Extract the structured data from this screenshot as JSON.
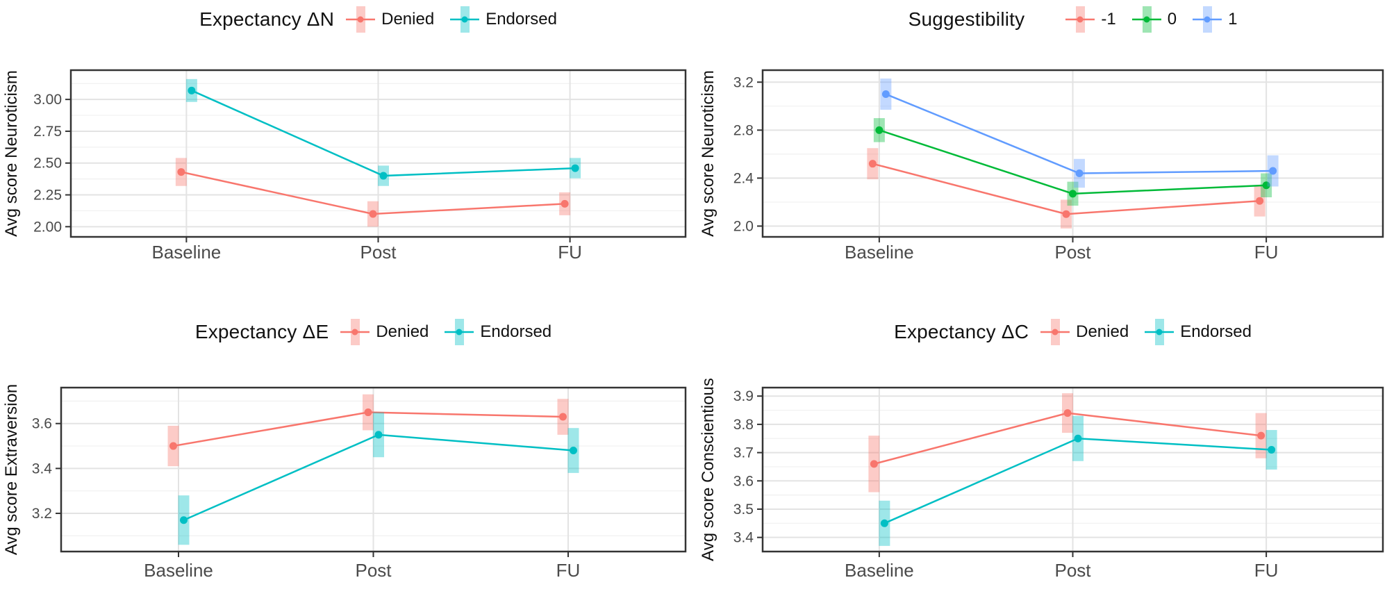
{
  "figure": {
    "background": "#ffffff",
    "x_axis_categories": [
      "Baseline",
      "Post",
      "FU"
    ]
  },
  "chart_data": [
    {
      "type": "line",
      "title": "Expectancy ΔN",
      "xlabel": "",
      "ylabel": "Avg score Neuroticism",
      "categories": [
        "Baseline",
        "Post",
        "FU"
      ],
      "yticks": [
        2.0,
        2.25,
        2.5,
        2.75,
        3.0
      ],
      "ytick_decimals": 2,
      "ylim": [
        1.92,
        3.23
      ],
      "grid": "major+minor",
      "legend_position": "top",
      "legend_title_gap": 16,
      "series": [
        {
          "name": "Denied",
          "color": "#F8766D",
          "values": [
            2.43,
            2.1,
            2.18
          ],
          "err": [
            0.11,
            0.1,
            0.09
          ]
        },
        {
          "name": "Endorsed",
          "color": "#00BFC4",
          "values": [
            3.07,
            2.4,
            2.46
          ],
          "err": [
            0.09,
            0.08,
            0.08
          ]
        }
      ]
    },
    {
      "type": "line",
      "title": "Suggestibility",
      "xlabel": "",
      "ylabel": "Avg score Neuroticism",
      "categories": [
        "Baseline",
        "Post",
        "FU"
      ],
      "yticks": [
        2.0,
        2.4,
        2.8,
        3.2
      ],
      "ytick_decimals": 1,
      "ylim": [
        1.91,
        3.3
      ],
      "grid": "major+minor",
      "legend_position": "top",
      "legend_title_gap": 58,
      "series": [
        {
          "name": "-1",
          "color": "#F8766D",
          "values": [
            2.52,
            2.1,
            2.21
          ],
          "err": [
            0.13,
            0.12,
            0.13
          ]
        },
        {
          "name": "0",
          "color": "#00BA38",
          "values": [
            2.8,
            2.27,
            2.34
          ],
          "err": [
            0.1,
            0.1,
            0.1
          ]
        },
        {
          "name": "1",
          "color": "#619CFF",
          "values": [
            3.1,
            2.44,
            2.46
          ],
          "err": [
            0.13,
            0.12,
            0.13
          ]
        }
      ]
    },
    {
      "type": "line",
      "title": "Expectancy ΔE",
      "xlabel": "",
      "ylabel": "Avg score Extraversion",
      "categories": [
        "Baseline",
        "Post",
        "FU"
      ],
      "yticks": [
        3.2,
        3.4,
        3.6
      ],
      "ytick_decimals": 1,
      "ylim": [
        3.03,
        3.76
      ],
      "grid": "major+minor",
      "legend_position": "top",
      "legend_title_gap": 16,
      "series": [
        {
          "name": "Denied",
          "color": "#F8766D",
          "values": [
            3.5,
            3.65,
            3.63
          ],
          "err": [
            0.09,
            0.08,
            0.08
          ]
        },
        {
          "name": "Endorsed",
          "color": "#00BFC4",
          "values": [
            3.17,
            3.55,
            3.48
          ],
          "err": [
            0.11,
            0.1,
            0.1
          ]
        }
      ]
    },
    {
      "type": "line",
      "title": "Expectancy ΔC",
      "xlabel": "",
      "ylabel": "Avg score Conscientious",
      "categories": [
        "Baseline",
        "Post",
        "FU"
      ],
      "yticks": [
        3.4,
        3.5,
        3.6,
        3.7,
        3.8,
        3.9
      ],
      "ytick_decimals": 1,
      "ylim": [
        3.35,
        3.93
      ],
      "grid": "major+minor",
      "legend_position": "top",
      "legend_title_gap": 16,
      "series": [
        {
          "name": "Denied",
          "color": "#F8766D",
          "values": [
            3.66,
            3.84,
            3.76
          ],
          "err": [
            0.1,
            0.07,
            0.08
          ]
        },
        {
          "name": "Endorsed",
          "color": "#00BFC4",
          "values": [
            3.45,
            3.75,
            3.71
          ],
          "err": [
            0.08,
            0.08,
            0.07
          ]
        }
      ]
    }
  ],
  "style": {
    "panel_border_color": "#343434",
    "major_grid_color": "#e3e3e3",
    "minor_grid_color": "#f0f0f0",
    "tick_color": "#333333",
    "tick_label_color": "#4a4a4a",
    "title_color": "#111111",
    "errorbar_opacity": 0.38
  }
}
